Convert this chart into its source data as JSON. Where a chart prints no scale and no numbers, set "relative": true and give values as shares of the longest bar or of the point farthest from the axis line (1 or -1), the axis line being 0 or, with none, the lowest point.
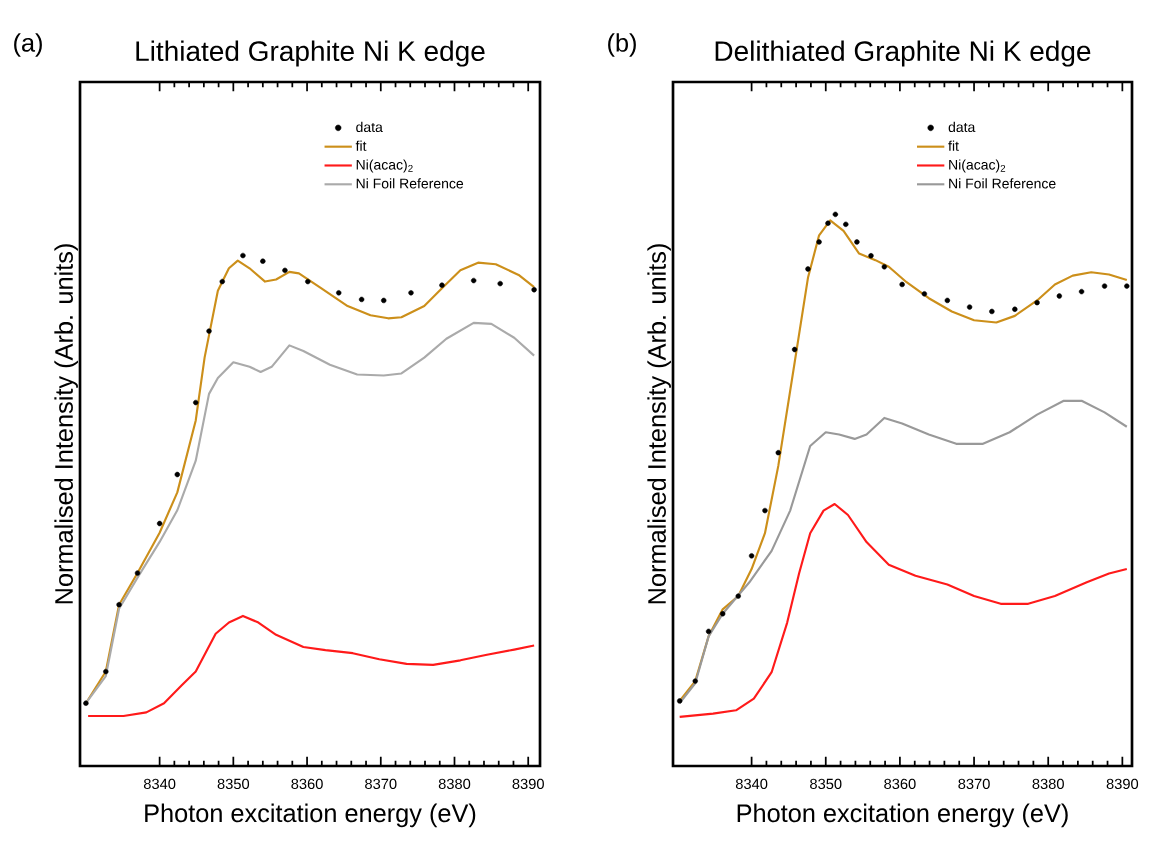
{
  "chart_data": [
    {
      "type": "line",
      "title": "Lithiated Graphite Ni K edge",
      "xlabel": "Photon excitation energy (eV)",
      "ylabel": "Normalised Intensity (Arb. units)",
      "annotations": [
        "(a)"
      ],
      "relative": true,
      "legend": "top right",
      "xlim": [
        8329.2,
        8391.6
      ],
      "xticks": [
        8340,
        8350,
        8360,
        8370,
        8380,
        8390
      ],
      "series": [
        {
          "name": "data",
          "type": "scatter",
          "marker": "circle",
          "color": "#000000",
          "x": [
            8330.0,
            8332.7,
            8334.5,
            8337.0,
            8340.0,
            8342.4,
            8344.9,
            8346.7,
            8348.5,
            8351.3,
            8354.0,
            8357.0,
            8360.1,
            8364.3,
            8367.4,
            8370.4,
            8374.1,
            8378.3,
            8382.6,
            8386.2,
            8390.8
          ],
          "values": [
            0.123,
            0.185,
            0.316,
            0.378,
            0.475,
            0.571,
            0.712,
            0.852,
            0.949,
            1.0,
            0.989,
            0.971,
            0.949,
            0.927,
            0.914,
            0.912,
            0.927,
            0.942,
            0.951,
            0.945,
            0.933
          ]
        },
        {
          "name": "fit",
          "color": "#cc8f1a",
          "x": [
            8330.0,
            8332.7,
            8334.5,
            8337.0,
            8340.0,
            8342.4,
            8344.9,
            8346.1,
            8347.9,
            8349.4,
            8350.6,
            8352.2,
            8354.3,
            8355.8,
            8357.6,
            8358.9,
            8361.9,
            8365.5,
            8368.6,
            8371.0,
            8372.8,
            8375.9,
            8378.3,
            8380.8,
            8383.2,
            8385.6,
            8388.7,
            8390.8
          ],
          "values": [
            0.123,
            0.185,
            0.316,
            0.378,
            0.457,
            0.536,
            0.677,
            0.8,
            0.931,
            0.975,
            0.99,
            0.975,
            0.949,
            0.953,
            0.968,
            0.965,
            0.936,
            0.901,
            0.883,
            0.877,
            0.879,
            0.901,
            0.936,
            0.971,
            0.986,
            0.983,
            0.962,
            0.938
          ]
        },
        {
          "name": "Ni(acac)$_{2}$",
          "color": "#ff1a1a",
          "x": [
            8330.3,
            8335.1,
            8338.2,
            8340.6,
            8343.0,
            8344.9,
            8347.6,
            8349.4,
            8351.3,
            8353.4,
            8355.8,
            8359.5,
            8362.5,
            8366.2,
            8369.8,
            8373.5,
            8377.1,
            8380.8,
            8384.4,
            8388.1,
            8390.8
          ],
          "values": [
            0.098,
            0.098,
            0.105,
            0.123,
            0.158,
            0.185,
            0.259,
            0.281,
            0.294,
            0.281,
            0.257,
            0.233,
            0.227,
            0.221,
            0.209,
            0.2,
            0.198,
            0.207,
            0.218,
            0.228,
            0.236
          ]
        },
        {
          "name": "Ni Foil Reference",
          "color": "#aaaaaa",
          "x": [
            8330.0,
            8332.7,
            8334.5,
            8337.0,
            8340.0,
            8342.4,
            8344.9,
            8346.7,
            8347.9,
            8350.0,
            8352.2,
            8353.7,
            8355.2,
            8357.6,
            8359.5,
            8363.1,
            8366.8,
            8370.4,
            8372.8,
            8375.9,
            8378.9,
            8382.6,
            8385.0,
            8388.1,
            8390.8
          ],
          "values": [
            0.123,
            0.176,
            0.308,
            0.369,
            0.439,
            0.501,
            0.598,
            0.729,
            0.76,
            0.791,
            0.782,
            0.772,
            0.782,
            0.824,
            0.813,
            0.786,
            0.767,
            0.765,
            0.769,
            0.8,
            0.837,
            0.868,
            0.866,
            0.839,
            0.804
          ]
        }
      ]
    },
    {
      "type": "line",
      "title": "Delithiated Graphite Ni K edge",
      "xlabel": "Photon excitation energy (eV)",
      "ylabel": "Normalised Intensity (Arb. units)",
      "annotations": [
        "(b)"
      ],
      "relative": true,
      "legend": "top right",
      "xlim": [
        8329.4,
        8391.3
      ],
      "xticks": [
        8340,
        8350,
        8360,
        8370,
        8380,
        8390
      ],
      "series": [
        {
          "name": "data",
          "type": "scatter",
          "marker": "circle",
          "color": "#000000",
          "x": [
            8330.3,
            8332.4,
            8334.2,
            8336.1,
            8338.2,
            8340.0,
            8341.8,
            8343.6,
            8345.8,
            8347.6,
            8349.1,
            8350.3,
            8351.3,
            8352.7,
            8354.2,
            8356.1,
            8357.9,
            8360.3,
            8363.3,
            8366.4,
            8369.4,
            8372.4,
            8375.5,
            8378.5,
            8381.5,
            8384.5,
            8387.6,
            8390.6
          ],
          "values": [
            0.118,
            0.154,
            0.244,
            0.276,
            0.308,
            0.381,
            0.463,
            0.568,
            0.755,
            0.901,
            0.95,
            0.984,
            1.0,
            0.982,
            0.95,
            0.925,
            0.905,
            0.873,
            0.856,
            0.844,
            0.832,
            0.824,
            0.828,
            0.84,
            0.852,
            0.86,
            0.87,
            0.87
          ]
        },
        {
          "name": "fit",
          "color": "#cc8f1a",
          "x": [
            8330.3,
            8332.4,
            8334.2,
            8336.1,
            8338.2,
            8340.0,
            8341.8,
            8343.6,
            8345.8,
            8347.6,
            8349.1,
            8350.6,
            8352.4,
            8354.5,
            8356.7,
            8358.5,
            8360.9,
            8363.9,
            8367.0,
            8370.0,
            8373.0,
            8375.5,
            8378.5,
            8380.9,
            8383.3,
            8385.8,
            8388.2,
            8390.6
          ],
          "values": [
            0.118,
            0.154,
            0.235,
            0.284,
            0.308,
            0.357,
            0.422,
            0.544,
            0.731,
            0.885,
            0.962,
            0.989,
            0.97,
            0.929,
            0.917,
            0.905,
            0.877,
            0.848,
            0.824,
            0.808,
            0.804,
            0.816,
            0.844,
            0.873,
            0.889,
            0.895,
            0.891,
            0.881
          ]
        },
        {
          "name": "Ni(acac)$_{2}$",
          "color": "#ff1a1a",
          "x": [
            8330.3,
            8334.8,
            8337.9,
            8340.3,
            8342.7,
            8344.8,
            8346.4,
            8347.9,
            8349.7,
            8351.2,
            8353.0,
            8355.5,
            8358.5,
            8362.1,
            8366.4,
            8370.0,
            8373.6,
            8377.3,
            8380.9,
            8385.2,
            8388.2,
            8390.6
          ],
          "values": [
            0.089,
            0.095,
            0.101,
            0.122,
            0.17,
            0.26,
            0.349,
            0.422,
            0.463,
            0.475,
            0.455,
            0.406,
            0.365,
            0.345,
            0.329,
            0.308,
            0.294,
            0.294,
            0.308,
            0.333,
            0.349,
            0.357
          ]
        },
        {
          "name": "Ni Foil Reference",
          "color": "#999999",
          "x": [
            8330.3,
            8332.4,
            8334.2,
            8336.1,
            8339.7,
            8342.7,
            8345.2,
            8347.9,
            8350.0,
            8351.8,
            8353.9,
            8355.5,
            8357.9,
            8360.3,
            8363.9,
            8367.6,
            8371.2,
            8374.8,
            8378.5,
            8382.1,
            8384.5,
            8387.6,
            8390.6
          ],
          "values": [
            0.114,
            0.15,
            0.235,
            0.276,
            0.333,
            0.39,
            0.463,
            0.58,
            0.605,
            0.601,
            0.593,
            0.601,
            0.631,
            0.621,
            0.601,
            0.584,
            0.584,
            0.605,
            0.637,
            0.662,
            0.662,
            0.641,
            0.615
          ]
        }
      ]
    }
  ]
}
